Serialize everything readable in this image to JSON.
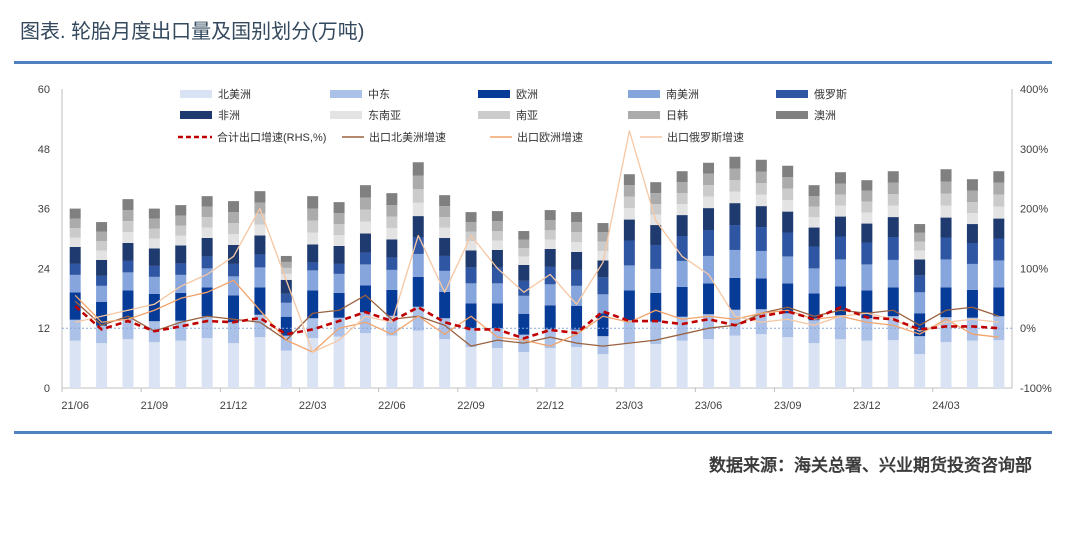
{
  "title": "图表. 轮胎月度出口量及国别划分(万吨)",
  "source": "数据来源：海关总署、兴业期货投资咨询部",
  "colors": {
    "title": "#34495e",
    "rule": "#4f80bf",
    "zero_reference": "#8eaadb"
  },
  "chart_data": {
    "type": "bar",
    "stacked": true,
    "legend_position": "top",
    "grid": false,
    "x_tick_labels": [
      "21/06",
      "21/09",
      "21/12",
      "22/03",
      "22/06",
      "22/09",
      "22/12",
      "23/03",
      "23/06",
      "23/09",
      "23/12",
      "24/03"
    ],
    "y_left": {
      "min": 0,
      "max": 60,
      "tick_labels": [
        "0",
        "12",
        "24",
        "36",
        "48",
        "60"
      ]
    },
    "y_right": {
      "min": -100,
      "max": 400,
      "tick_labels": [
        "-100%",
        "0%",
        "100%",
        "200%",
        "300%",
        "400%"
      ]
    },
    "series": [
      {
        "name": "北美洲",
        "type": "bar",
        "color": "#dae3f3",
        "values": [
          9.5,
          9.0,
          9.8,
          9.2,
          9.5,
          10.0,
          9.0,
          10.2,
          7.5,
          10.0,
          10.3,
          11.0,
          10.5,
          11.5,
          9.8,
          8.2,
          8.0,
          7.2,
          8.0,
          8.2,
          6.8,
          9.0,
          8.8,
          9.5,
          9.8,
          10.5,
          10.8,
          10.2,
          9.0,
          9.8,
          9.5,
          9.6,
          6.8,
          9.2,
          9.5,
          9.6
        ]
      },
      {
        "name": "中东",
        "type": "bar",
        "color": "#abc1e7",
        "values": [
          4.2,
          3.5,
          4.0,
          4.2,
          4.0,
          4.4,
          4.2,
          4.5,
          3.0,
          4.0,
          3.8,
          4.2,
          4.0,
          4.8,
          4.2,
          3.8,
          4.0,
          3.5,
          3.8,
          3.5,
          3.6,
          4.6,
          4.5,
          4.8,
          5.0,
          5.2,
          5.0,
          4.8,
          4.6,
          4.8,
          4.5,
          4.8,
          3.6,
          5.0,
          4.6,
          4.8
        ]
      },
      {
        "name": "欧洲",
        "type": "bar",
        "color": "#073b98",
        "values": [
          5.5,
          4.8,
          5.8,
          5.5,
          5.6,
          5.8,
          5.4,
          5.5,
          3.8,
          5.6,
          5.0,
          5.4,
          5.2,
          6.0,
          5.3,
          5.0,
          5.0,
          4.2,
          4.8,
          4.8,
          4.6,
          6.0,
          5.8,
          6.0,
          6.2,
          6.4,
          6.2,
          6.0,
          5.4,
          5.8,
          5.6,
          5.8,
          4.6,
          6.0,
          5.6,
          5.8
        ]
      },
      {
        "name": "南美洲",
        "type": "bar",
        "color": "#86a5dc",
        "values": [
          3.5,
          3.2,
          3.6,
          3.4,
          3.6,
          3.8,
          3.8,
          4.0,
          2.8,
          4.0,
          3.8,
          4.2,
          4.0,
          4.6,
          4.2,
          4.0,
          4.0,
          3.6,
          4.2,
          4.0,
          3.8,
          5.0,
          4.8,
          5.2,
          5.5,
          5.6,
          5.5,
          5.4,
          5.0,
          5.4,
          5.2,
          5.5,
          4.2,
          5.6,
          5.2,
          5.4
        ]
      },
      {
        "name": "俄罗斯",
        "type": "bar",
        "color": "#2e56a3",
        "values": [
          2.2,
          2.0,
          2.3,
          2.2,
          2.3,
          2.4,
          2.5,
          2.6,
          1.8,
          1.6,
          2.0,
          2.4,
          2.5,
          3.4,
          3.0,
          3.2,
          3.2,
          3.0,
          3.5,
          3.2,
          3.4,
          5.0,
          4.8,
          5.0,
          5.2,
          5.0,
          4.8,
          4.8,
          4.4,
          4.6,
          4.4,
          4.6,
          3.4,
          4.4,
          4.2,
          4.4
        ]
      },
      {
        "name": "非洲",
        "type": "bar",
        "color": "#1f3a6e",
        "values": [
          3.4,
          3.2,
          3.6,
          3.5,
          3.6,
          3.7,
          3.8,
          3.8,
          2.8,
          3.6,
          3.6,
          3.8,
          3.6,
          4.2,
          3.6,
          3.4,
          3.5,
          3.2,
          3.6,
          3.6,
          3.4,
          4.2,
          4.0,
          4.2,
          4.4,
          4.4,
          4.2,
          4.2,
          3.8,
          4.0,
          3.8,
          4.0,
          3.2,
          4.0,
          3.8,
          4.0
        ]
      },
      {
        "name": "东南亚",
        "type": "bar",
        "color": "#e3e3e3",
        "values": [
          1.9,
          1.9,
          2.2,
          2.0,
          2.0,
          2.1,
          2.2,
          2.2,
          1.2,
          2.4,
          2.2,
          2.4,
          2.3,
          2.7,
          2.1,
          1.9,
          1.9,
          1.7,
          1.9,
          2.0,
          1.9,
          2.3,
          2.1,
          2.2,
          2.3,
          2.3,
          2.3,
          2.3,
          2.1,
          2.2,
          2.2,
          2.3,
          1.8,
          2.4,
          2.2,
          2.4
        ]
      },
      {
        "name": "南亚",
        "type": "bar",
        "color": "#cbcbcb",
        "values": [
          1.9,
          1.9,
          2.2,
          2.0,
          2.0,
          2.1,
          2.2,
          2.2,
          1.2,
          2.4,
          2.2,
          2.4,
          2.3,
          2.7,
          2.1,
          1.9,
          1.9,
          1.7,
          1.9,
          2.0,
          1.9,
          2.3,
          2.1,
          2.2,
          2.3,
          2.3,
          2.3,
          2.3,
          2.1,
          2.2,
          2.2,
          2.3,
          1.8,
          2.4,
          2.2,
          2.4
        ]
      },
      {
        "name": "日韩",
        "type": "bar",
        "color": "#ababab",
        "values": [
          1.9,
          1.9,
          2.2,
          2.0,
          2.0,
          2.1,
          2.2,
          2.2,
          1.2,
          2.4,
          2.2,
          2.4,
          2.3,
          2.7,
          2.2,
          1.9,
          2.0,
          1.7,
          2.0,
          2.0,
          1.9,
          2.3,
          2.2,
          2.2,
          2.3,
          2.3,
          2.3,
          2.3,
          2.1,
          2.2,
          2.2,
          2.3,
          1.8,
          2.4,
          2.3,
          2.4
        ]
      },
      {
        "name": "澳洲",
        "type": "bar",
        "color": "#808080",
        "values": [
          2.0,
          1.9,
          2.2,
          2.0,
          2.1,
          2.1,
          2.2,
          2.3,
          1.2,
          2.5,
          2.2,
          2.5,
          2.4,
          2.7,
          2.2,
          2.0,
          2.0,
          1.7,
          2.0,
          2.0,
          1.8,
          2.2,
          2.2,
          2.2,
          2.2,
          2.4,
          2.4,
          2.3,
          2.2,
          2.3,
          2.1,
          2.3,
          1.7,
          2.5,
          2.3,
          2.3
        ]
      },
      {
        "name": "合计出口增速(RHS,%)",
        "type": "line",
        "axis": "right",
        "style": "dashed",
        "color": "#c00000",
        "values": [
          37,
          -2,
          12,
          -5,
          3,
          12,
          10,
          17,
          -10,
          -2,
          12,
          27,
          12,
          35,
          10,
          -2,
          -2,
          -17,
          -3,
          -8,
          28,
          12,
          12,
          7,
          15,
          5,
          20,
          28,
          15,
          35,
          18,
          15,
          -2,
          3,
          3,
          0
        ]
      },
      {
        "name": "出口北美洲增速",
        "type": "line",
        "axis": "right",
        "style": "solid",
        "color": "#9a6240",
        "values": [
          45,
          5,
          20,
          -5,
          10,
          20,
          15,
          10,
          -20,
          25,
          30,
          55,
          15,
          20,
          5,
          -30,
          -20,
          -25,
          -15,
          -25,
          -30,
          -25,
          -20,
          -10,
          0,
          5,
          25,
          35,
          20,
          30,
          25,
          30,
          5,
          30,
          35,
          20
        ]
      },
      {
        "name": "出口欧洲增速",
        "type": "line",
        "axis": "right",
        "style": "solid",
        "color": "#f2a36b",
        "values": [
          55,
          10,
          15,
          30,
          50,
          60,
          80,
          30,
          -20,
          -40,
          0,
          10,
          -10,
          20,
          -10,
          20,
          -15,
          -20,
          -30,
          -10,
          20,
          10,
          30,
          15,
          20,
          15,
          25,
          30,
          15,
          20,
          10,
          5,
          -10,
          15,
          -10,
          -15
        ]
      },
      {
        "name": "出口俄罗斯增速",
        "type": "line",
        "axis": "right",
        "style": "solid",
        "color": "#f6c7a3",
        "values": [
          10,
          20,
          30,
          40,
          70,
          90,
          120,
          200,
          80,
          -40,
          -20,
          20,
          10,
          155,
          60,
          155,
          100,
          60,
          90,
          40,
          110,
          330,
          180,
          120,
          90,
          20,
          10,
          15,
          5,
          20,
          25,
          15,
          -5,
          10,
          15,
          10
        ]
      }
    ]
  }
}
